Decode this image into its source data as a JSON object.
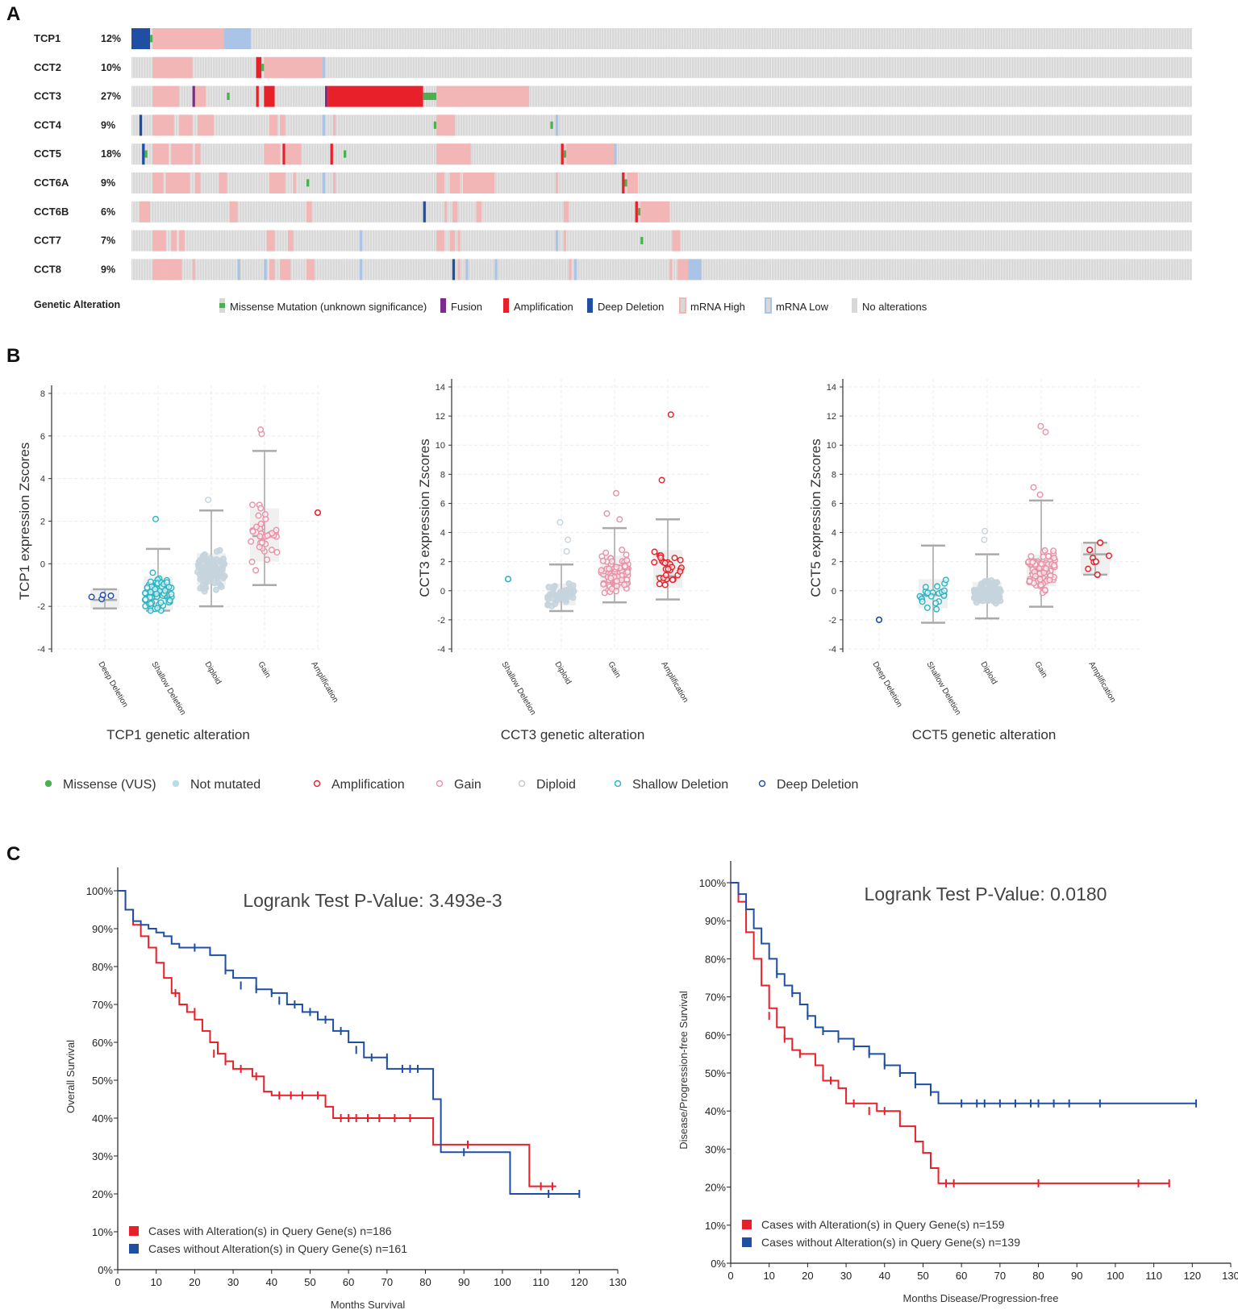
{
  "panels": {
    "a": "A",
    "b": "B",
    "c": "C"
  },
  "colors": {
    "missense": "#4caf50",
    "fusion": "#7b2d8e",
    "amplification": "#e8202a",
    "deep_deletion": "#1f4fa3",
    "mrna_high": "#f2b6b6",
    "mrna_low": "#a9c4e6",
    "no_alteration": "#d8d8d8",
    "with_alteration": "#e8202a",
    "without_alteration": "#1f4fa3",
    "shallow": "#2bb5c4",
    "gain": "#e892a6",
    "diploid": "#c5d4dd"
  },
  "oncoprint": {
    "genes": [
      {
        "name": "TCP1",
        "pct": "12%"
      },
      {
        "name": "CCT2",
        "pct": "10%"
      },
      {
        "name": "CCT3",
        "pct": "27%"
      },
      {
        "name": "CCT4",
        "pct": "9%"
      },
      {
        "name": "CCT5",
        "pct": "18%"
      },
      {
        "name": "CCT6A",
        "pct": "9%"
      },
      {
        "name": "CCT6B",
        "pct": "6%"
      },
      {
        "name": "CCT7",
        "pct": "7%"
      },
      {
        "name": "CCT8",
        "pct": "9%"
      }
    ],
    "legend_title": "Genetic Alteration",
    "legend": [
      {
        "key": "missense",
        "label": "Missense Mutation (unknown significance)"
      },
      {
        "key": "fusion",
        "label": "Fusion"
      },
      {
        "key": "amplification",
        "label": "Amplification"
      },
      {
        "key": "deep_deletion",
        "label": "Deep Deletion"
      },
      {
        "key": "mrna_high",
        "label": "mRNA High"
      },
      {
        "key": "mrna_low",
        "label": "mRNA Low"
      },
      {
        "key": "no_alteration",
        "label": "No alterations"
      }
    ]
  },
  "boxplot_legend": [
    {
      "key": "missense",
      "label": "Missense (VUS)"
    },
    {
      "key": "not_mutated",
      "label": "Not mutated"
    },
    {
      "key": "amplification",
      "label": "Amplification"
    },
    {
      "key": "gain",
      "label": "Gain"
    },
    {
      "key": "diploid",
      "label": "Diploid"
    },
    {
      "key": "shallow",
      "label": "Shallow Deletion"
    },
    {
      "key": "deep",
      "label": "Deep Deletion"
    }
  ],
  "chart_data": [
    {
      "type": "box",
      "gene": "TCP1",
      "ylabel": "TCP1 expression Zscores",
      "xlabel": "TCP1 genetic alteration",
      "ylim": [
        -4,
        8
      ],
      "yticks": [
        -4,
        -2,
        0,
        2,
        4,
        6,
        8
      ],
      "categories": [
        "Deep Deletion",
        "Shallow Deletion",
        "Diploid",
        "Gain",
        "Amplification"
      ],
      "boxes": [
        {
          "category": "Deep Deletion",
          "min": -2.1,
          "q1": -2.1,
          "median": -1.7,
          "q3": -1.2,
          "max": -1.2,
          "n": 4,
          "extra": []
        },
        {
          "category": "Shallow Deletion",
          "min": -2.2,
          "q1": -2.2,
          "median": -1.3,
          "q3": -0.6,
          "max": 0.7,
          "n": 70,
          "extra": [
            2.1
          ]
        },
        {
          "category": "Diploid",
          "min": -2.0,
          "q1": -1.0,
          "median": -0.2,
          "q3": 0.5,
          "max": 2.5,
          "n": 110,
          "extra": [
            3.0
          ]
        },
        {
          "category": "Gain",
          "min": -1.0,
          "q1": 0.1,
          "median": 1.3,
          "q3": 2.6,
          "max": 5.3,
          "n": 38,
          "extra": [
            6.1,
            6.3
          ]
        },
        {
          "category": "Amplification",
          "n": 1,
          "points": [
            2.4
          ]
        }
      ]
    },
    {
      "type": "box",
      "gene": "CCT3",
      "ylabel": "CCT3 expression Zscores",
      "xlabel": "CCT3 genetic alteration",
      "ylim": [
        -4,
        14
      ],
      "yticks": [
        -4,
        -2,
        0,
        2,
        4,
        6,
        8,
        10,
        12,
        14
      ],
      "categories": [
        "Shallow Deletion",
        "Diploid",
        "Gain",
        "Amplification"
      ],
      "boxes": [
        {
          "category": "Shallow Deletion",
          "n": 1,
          "points": [
            0.8
          ]
        },
        {
          "category": "Diploid",
          "min": -1.4,
          "q1": -1.0,
          "median": -0.3,
          "q3": 0.5,
          "max": 1.8,
          "n": 45,
          "extra": [
            2.7,
            3.5,
            4.7
          ]
        },
        {
          "category": "Gain",
          "min": -0.8,
          "q1": 0.0,
          "median": 1.0,
          "q3": 2.4,
          "max": 4.3,
          "n": 150,
          "extra": [
            4.9,
            5.3,
            6.7
          ]
        },
        {
          "category": "Amplification",
          "min": -0.6,
          "q1": 0.2,
          "median": 1.0,
          "q3": 2.8,
          "max": 4.9,
          "n": 28,
          "extra": [
            7.6,
            12.1
          ]
        }
      ]
    },
    {
      "type": "box",
      "gene": "CCT5",
      "ylabel": "CCT5 expression Zscores",
      "xlabel": "CCT5 genetic alteration",
      "ylim": [
        -4,
        14
      ],
      "yticks": [
        -4,
        -2,
        0,
        2,
        4,
        6,
        8,
        10,
        12,
        14
      ],
      "categories": [
        "Deep Deletion",
        "Shallow Deletion",
        "Diploid",
        "Gain",
        "Amplification"
      ],
      "boxes": [
        {
          "category": "Deep Deletion",
          "n": 1,
          "points": [
            -2.0
          ]
        },
        {
          "category": "Shallow Deletion",
          "min": -2.2,
          "q1": -1.2,
          "median": -0.3,
          "q3": 0.8,
          "max": 3.1,
          "n": 22,
          "extra": []
        },
        {
          "category": "Diploid",
          "min": -1.9,
          "q1": -0.9,
          "median": -0.1,
          "q3": 0.6,
          "max": 2.5,
          "n": 140,
          "extra": [
            3.5,
            4.1
          ]
        },
        {
          "category": "Gain",
          "min": -1.1,
          "q1": 0.3,
          "median": 1.2,
          "q3": 2.5,
          "max": 6.2,
          "n": 85,
          "extra": [
            6.6,
            7.1,
            10.9,
            11.3
          ]
        },
        {
          "category": "Amplification",
          "min": 1.1,
          "q1": 1.1,
          "median": 2.5,
          "q3": 3.3,
          "max": 3.3,
          "n": 4,
          "points": [
            3.3,
            2.8,
            2.0,
            1.1
          ]
        }
      ]
    },
    {
      "type": "line",
      "subtype": "kaplan-meier",
      "title": "Logrank Test P-Value: 3.493e-3",
      "xlabel": "Months Survival",
      "ylabel": "Overall Survival",
      "xlim": [
        0,
        130
      ],
      "ylim": [
        0,
        100
      ],
      "xticks": [
        0,
        10,
        20,
        30,
        40,
        50,
        60,
        70,
        80,
        90,
        100,
        110,
        120,
        130
      ],
      "yticks": [
        0,
        10,
        20,
        30,
        40,
        50,
        60,
        70,
        80,
        90,
        100
      ],
      "series": [
        {
          "name": "Cases with Alteration(s) in Query Gene(s) n=186",
          "color_key": "with_alteration",
          "x": [
            0,
            2,
            4,
            6,
            8,
            10,
            12,
            14,
            16,
            18,
            20,
            22,
            24,
            26,
            28,
            30,
            35,
            38,
            40,
            45,
            50,
            54,
            56,
            60,
            70,
            80,
            82,
            90,
            100,
            107,
            110,
            114
          ],
          "y": [
            100,
            95,
            91,
            88,
            85,
            81,
            77,
            73,
            70,
            68,
            66,
            63,
            60,
            57,
            55,
            53,
            51,
            47,
            46,
            46,
            46,
            43,
            40,
            40,
            40,
            40,
            33,
            33,
            33,
            22,
            22,
            22
          ]
        },
        {
          "name": "Cases without Alteration(s) in Query Gene(s) n=161",
          "color_key": "without_alteration",
          "x": [
            0,
            2,
            4,
            6,
            8,
            10,
            12,
            14,
            16,
            20,
            24,
            28,
            30,
            36,
            40,
            44,
            48,
            52,
            56,
            60,
            64,
            70,
            80,
            82,
            84,
            90,
            102,
            110,
            120
          ],
          "y": [
            100,
            95,
            92,
            91,
            90,
            89,
            88,
            86,
            85,
            85,
            83,
            79,
            77,
            74,
            73,
            70,
            68,
            66,
            63,
            60,
            56,
            53,
            53,
            45,
            31,
            31,
            20,
            20,
            20
          ]
        }
      ],
      "censor_with": [
        [
          15,
          73
        ],
        [
          20,
          68
        ],
        [
          25,
          57
        ],
        [
          28,
          55
        ],
        [
          32,
          53
        ],
        [
          36,
          51
        ],
        [
          42,
          46
        ],
        [
          45,
          46
        ],
        [
          48,
          46
        ],
        [
          52,
          46
        ],
        [
          58,
          40
        ],
        [
          60,
          40
        ],
        [
          62,
          40
        ],
        [
          65,
          40
        ],
        [
          68,
          40
        ],
        [
          72,
          40
        ],
        [
          76,
          40
        ],
        [
          91,
          33
        ],
        [
          110,
          22
        ],
        [
          113,
          22
        ]
      ],
      "censor_without": [
        [
          20,
          85
        ],
        [
          24,
          84
        ],
        [
          28,
          79
        ],
        [
          32,
          75
        ],
        [
          36,
          74
        ],
        [
          40,
          73
        ],
        [
          42,
          71
        ],
        [
          46,
          70
        ],
        [
          50,
          68
        ],
        [
          54,
          66
        ],
        [
          58,
          63
        ],
        [
          62,
          58
        ],
        [
          66,
          56
        ],
        [
          70,
          56
        ],
        [
          74,
          53
        ],
        [
          76,
          53
        ],
        [
          78,
          53
        ],
        [
          90,
          31
        ],
        [
          112,
          20
        ],
        [
          120,
          20
        ]
      ]
    },
    {
      "type": "line",
      "subtype": "kaplan-meier",
      "title": "Logrank Test P-Value: 0.0180",
      "xlabel": "Months Disease/Progression-free",
      "ylabel": "Disease/Progression-free Survival",
      "xlim": [
        0,
        130
      ],
      "ylim": [
        0,
        100
      ],
      "xticks": [
        0,
        10,
        20,
        30,
        40,
        50,
        60,
        70,
        80,
        90,
        100,
        110,
        120,
        130
      ],
      "yticks": [
        0,
        10,
        20,
        30,
        40,
        50,
        60,
        70,
        80,
        90,
        100
      ],
      "series": [
        {
          "name": "Cases with Alteration(s) in Query Gene(s) n=159",
          "color_key": "with_alteration",
          "x": [
            0,
            2,
            4,
            6,
            8,
            10,
            12,
            14,
            16,
            18,
            20,
            22,
            24,
            26,
            28,
            30,
            34,
            38,
            42,
            44,
            48,
            50,
            52,
            54,
            56,
            60,
            80,
            100,
            114
          ],
          "y": [
            100,
            95,
            87,
            80,
            73,
            67,
            62,
            59,
            56,
            55,
            55,
            52,
            48,
            48,
            46,
            42,
            42,
            40,
            40,
            36,
            32,
            29,
            25,
            21,
            21,
            21,
            21,
            21,
            21
          ]
        },
        {
          "name": "Cases without Alteration(s) in Query Gene(s) n=139",
          "color_key": "without_alteration",
          "x": [
            0,
            2,
            4,
            6,
            8,
            10,
            12,
            14,
            16,
            18,
            20,
            22,
            24,
            28,
            32,
            36,
            40,
            44,
            48,
            52,
            54,
            56,
            60,
            80,
            100,
            121
          ],
          "y": [
            100,
            97,
            93,
            88,
            84,
            80,
            76,
            73,
            71,
            68,
            65,
            62,
            61,
            59,
            57,
            55,
            52,
            50,
            47,
            45,
            42,
            42,
            42,
            42,
            42,
            42
          ]
        }
      ],
      "censor_with": [
        [
          10,
          65
        ],
        [
          14,
          59
        ],
        [
          18,
          55
        ],
        [
          26,
          48
        ],
        [
          32,
          42
        ],
        [
          36,
          40
        ],
        [
          40,
          40
        ],
        [
          56,
          21
        ],
        [
          58,
          21
        ],
        [
          80,
          21
        ],
        [
          106,
          21
        ],
        [
          114,
          21
        ]
      ],
      "censor_without": [
        [
          12,
          76
        ],
        [
          16,
          71
        ],
        [
          20,
          65
        ],
        [
          24,
          61
        ],
        [
          28,
          59
        ],
        [
          32,
          57
        ],
        [
          36,
          55
        ],
        [
          40,
          52
        ],
        [
          44,
          50
        ],
        [
          48,
          47
        ],
        [
          52,
          45
        ],
        [
          60,
          42
        ],
        [
          64,
          42
        ],
        [
          66,
          42
        ],
        [
          70,
          42
        ],
        [
          74,
          42
        ],
        [
          78,
          42
        ],
        [
          80,
          42
        ],
        [
          84,
          42
        ],
        [
          88,
          42
        ],
        [
          96,
          42
        ],
        [
          121,
          42
        ]
      ]
    }
  ]
}
